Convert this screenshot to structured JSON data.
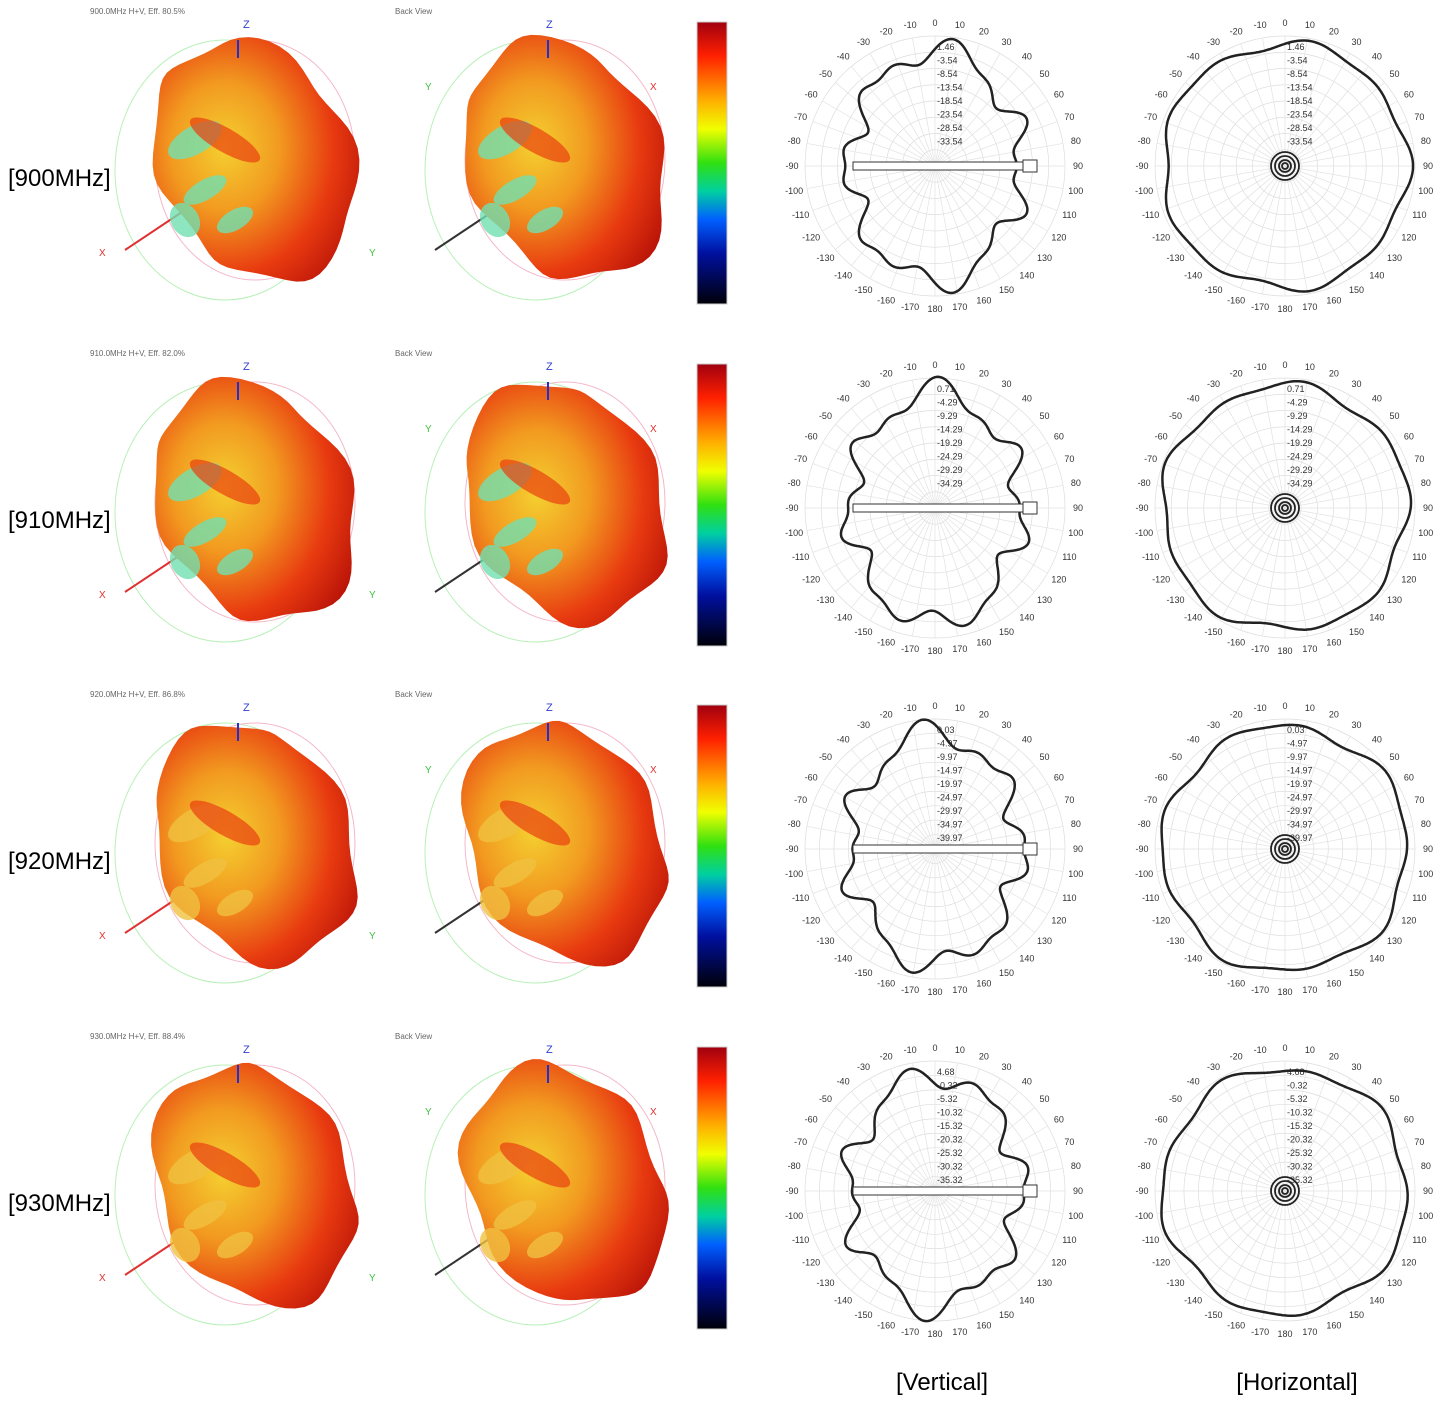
{
  "rows": [
    {
      "label": "[900MHz]",
      "header": "900.0MHz H+V, Eff. 80.5%",
      "back_view": "Back View",
      "rings": [
        1.46,
        -3.54,
        -8.54,
        -13.54,
        -18.54,
        -23.54,
        -28.54,
        -33.54
      ]
    },
    {
      "label": "[910MHz]",
      "header": "910.0MHz H+V, Eff. 82.0%",
      "back_view": "Back View",
      "rings": [
        0.71,
        -4.29,
        -9.29,
        -14.29,
        -19.29,
        -24.29,
        -29.29,
        -34.29
      ]
    },
    {
      "label": "[920MHz]",
      "header": "920.0MHz H+V, Eff. 86.8%",
      "back_view": "Back View",
      "rings": [
        0.03,
        -4.97,
        -9.97,
        -14.97,
        -19.97,
        -24.97,
        -29.97,
        -34.97,
        -39.97
      ]
    },
    {
      "label": "[930MHz]",
      "header": "930.0MHz H+V, Eff. 88.4%",
      "back_view": "Back View",
      "rings": [
        4.68,
        -0.32,
        -5.32,
        -10.32,
        -15.32,
        -20.32,
        -25.32,
        -30.32,
        -35.32
      ]
    }
  ],
  "axes": {
    "x": "X",
    "y": "Y",
    "z": "Z"
  },
  "angles": [
    0,
    10,
    20,
    30,
    40,
    50,
    60,
    70,
    80,
    90,
    100,
    110,
    120,
    130,
    140,
    150,
    160,
    170,
    180,
    -170,
    -160,
    -150,
    -140,
    -130,
    -120,
    -110,
    -100,
    -90,
    -80,
    -70,
    -60,
    -50,
    -40,
    -30,
    -20,
    -10
  ],
  "columns": {
    "vertical": "[Vertical]",
    "horizontal": "[Horizontal]"
  }
}
